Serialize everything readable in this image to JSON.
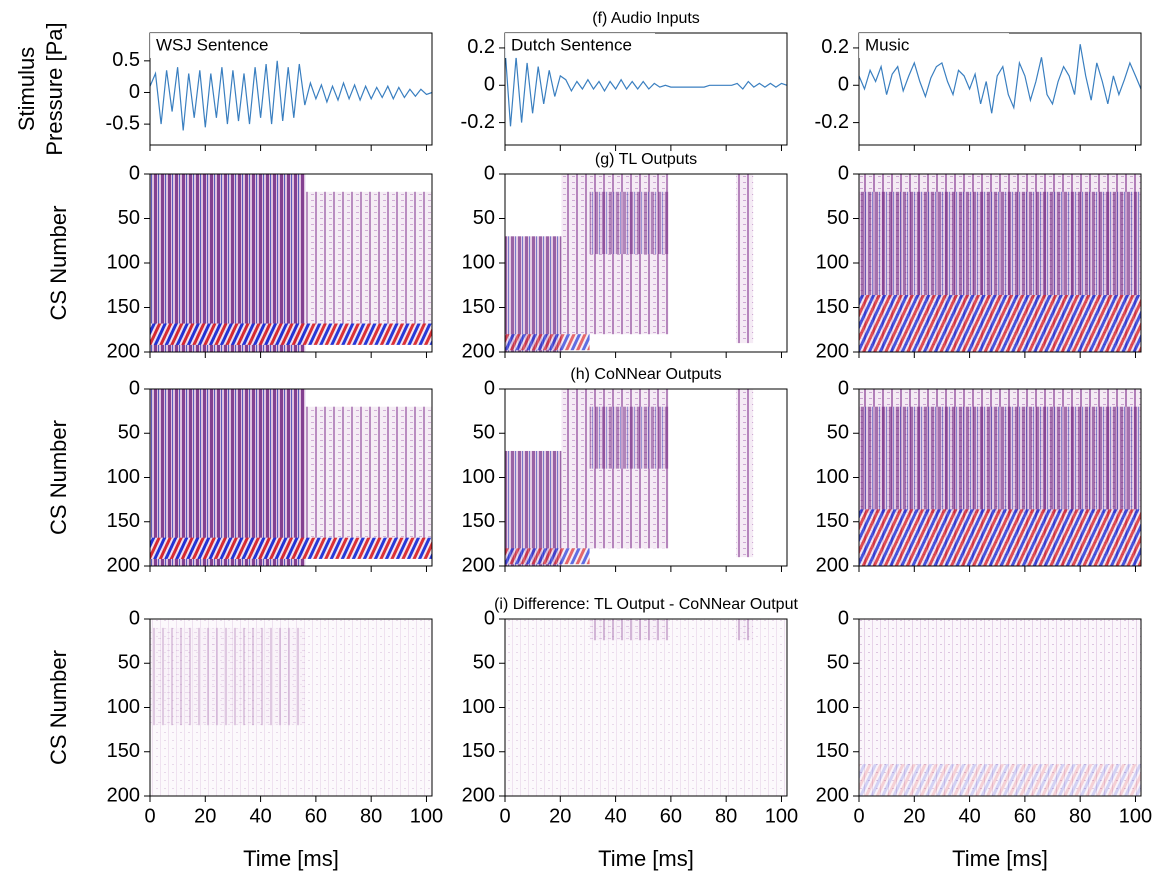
{
  "chart_data": [
    {
      "type": "line",
      "annotation": "WSJ Sentence",
      "ylabel": [
        "Stimulus",
        "Pressure [Pa]"
      ],
      "color": "#3a7fc0",
      "x": [
        0,
        2,
        4,
        6,
        8,
        10,
        12,
        14,
        16,
        18,
        20,
        22,
        24,
        26,
        28,
        30,
        32,
        34,
        36,
        38,
        40,
        42,
        44,
        46,
        48,
        50,
        52,
        54,
        56,
        58,
        60,
        62,
        64,
        66,
        68,
        70,
        72,
        74,
        76,
        78,
        80,
        82,
        84,
        86,
        88,
        90,
        92,
        94,
        96,
        98,
        100,
        102
      ],
      "values": [
        0.1,
        0.3,
        -0.5,
        0.35,
        -0.3,
        0.4,
        -0.6,
        0.3,
        -0.4,
        0.35,
        -0.55,
        0.3,
        -0.4,
        0.4,
        -0.5,
        0.35,
        -0.45,
        0.3,
        -0.5,
        0.4,
        -0.4,
        0.45,
        -0.5,
        0.5,
        -0.45,
        0.4,
        -0.4,
        0.45,
        -0.2,
        0.15,
        -0.1,
        0.12,
        -0.15,
        0.1,
        -0.12,
        0.15,
        -0.1,
        0.12,
        -0.12,
        0.1,
        -0.1,
        0.08,
        -0.08,
        0.1,
        -0.1,
        0.08,
        -0.08,
        0.05,
        -0.06,
        0.05,
        -0.03,
        0
      ],
      "xlim": [
        0,
        102
      ],
      "xticks": [
        0,
        20,
        40,
        60,
        80,
        100
      ],
      "ylim": [
        -0.83,
        0.94
      ],
      "yticks": [
        0.5,
        0,
        -0.5
      ]
    },
    {
      "type": "line",
      "title": "(f) Audio Inputs",
      "annotation": "Dutch Sentence",
      "color": "#3a7fc0",
      "x": [
        0,
        2,
        4,
        6,
        8,
        10,
        12,
        14,
        16,
        18,
        20,
        22,
        24,
        26,
        28,
        30,
        32,
        34,
        36,
        38,
        40,
        42,
        44,
        46,
        48,
        50,
        52,
        54,
        56,
        58,
        60,
        62,
        64,
        66,
        68,
        70,
        72,
        74,
        76,
        78,
        80,
        82,
        84,
        86,
        88,
        90,
        92,
        94,
        96,
        98,
        100,
        102
      ],
      "values": [
        0.2,
        -0.22,
        0.15,
        -0.2,
        0.12,
        -0.15,
        0.1,
        -0.1,
        0.08,
        -0.06,
        0.05,
        0.03,
        -0.03,
        0.02,
        -0.02,
        0.03,
        -0.02,
        0.02,
        -0.03,
        0.02,
        -0.02,
        0.03,
        -0.02,
        0.02,
        -0.02,
        0.02,
        -0.02,
        0.01,
        -0.01,
        0,
        -0.01,
        -0.01,
        -0.01,
        -0.01,
        -0.01,
        -0.01,
        -0.01,
        0,
        0,
        0,
        0,
        0,
        0.01,
        -0.02,
        0.02,
        -0.01,
        0.01,
        -0.01,
        0.01,
        -0.01,
        0.01,
        0
      ],
      "xlim": [
        0,
        102
      ],
      "xticks": [
        0,
        20,
        40,
        60,
        80,
        100
      ],
      "ylim": [
        -0.32,
        0.28
      ],
      "yticks": [
        0.2,
        0,
        -0.2
      ]
    },
    {
      "type": "line",
      "annotation": "Music",
      "color": "#3a7fc0",
      "x": [
        0,
        2,
        4,
        6,
        8,
        10,
        12,
        14,
        16,
        18,
        20,
        22,
        24,
        26,
        28,
        30,
        32,
        34,
        36,
        38,
        40,
        42,
        44,
        46,
        48,
        50,
        52,
        54,
        56,
        58,
        60,
        62,
        64,
        66,
        68,
        70,
        72,
        74,
        76,
        78,
        80,
        82,
        84,
        86,
        88,
        90,
        92,
        94,
        96,
        98,
        100,
        102
      ],
      "values": [
        0.05,
        -0.02,
        0.08,
        0.02,
        0.1,
        -0.05,
        0.06,
        0.1,
        -0.03,
        0.05,
        0.12,
        0.02,
        -0.06,
        0.04,
        0.1,
        0.12,
        0.02,
        -0.05,
        0.08,
        0.05,
        -0.02,
        0.06,
        -0.1,
        0.02,
        -0.15,
        0.05,
        0.1,
        -0.05,
        -0.12,
        0.12,
        0.05,
        -0.08,
        0.02,
        0.15,
        -0.05,
        -0.1,
        0.02,
        0.1,
        0.05,
        -0.05,
        0.22,
        0.05,
        -0.08,
        0.12,
        0.02,
        -0.1,
        0.05,
        -0.05,
        0.03,
        0.12,
        0.05,
        -0.02
      ],
      "xlim": [
        0,
        102
      ],
      "xticks": [
        0,
        20,
        40,
        60,
        80,
        100
      ],
      "ylim": [
        -0.32,
        0.28
      ],
      "yticks": [
        0.2,
        0,
        -0.2
      ]
    },
    {
      "type": "heatmap",
      "ylabel": "CS Number",
      "xlim": [
        0,
        102
      ],
      "xticks": [
        0,
        20,
        40,
        60,
        80,
        100
      ],
      "ylim": [
        200,
        0
      ],
      "yticks": [
        0,
        50,
        100,
        150,
        200
      ]
    },
    {
      "type": "heatmap",
      "title": "(g) TL Outputs",
      "xlim": [
        0,
        102
      ],
      "xticks": [
        0,
        20,
        40,
        60,
        80,
        100
      ],
      "ylim": [
        200,
        0
      ],
      "yticks": [
        0,
        50,
        100,
        150,
        200
      ]
    },
    {
      "type": "heatmap",
      "xlim": [
        0,
        102
      ],
      "xticks": [
        0,
        20,
        40,
        60,
        80,
        100
      ],
      "ylim": [
        200,
        0
      ],
      "yticks": [
        0,
        50,
        100,
        150,
        200
      ]
    },
    {
      "type": "heatmap",
      "ylabel": "CS Number",
      "xlim": [
        0,
        102
      ],
      "xticks": [
        0,
        20,
        40,
        60,
        80,
        100
      ],
      "ylim": [
        200,
        0
      ],
      "yticks": [
        0,
        50,
        100,
        150,
        200
      ]
    },
    {
      "type": "heatmap",
      "title": "(h) CoNNear Outputs",
      "xlim": [
        0,
        102
      ],
      "xticks": [
        0,
        20,
        40,
        60,
        80,
        100
      ],
      "ylim": [
        200,
        0
      ],
      "yticks": [
        0,
        50,
        100,
        150,
        200
      ]
    },
    {
      "type": "heatmap",
      "xlim": [
        0,
        102
      ],
      "xticks": [
        0,
        20,
        40,
        60,
        80,
        100
      ],
      "ylim": [
        200,
        0
      ],
      "yticks": [
        0,
        50,
        100,
        150,
        200
      ]
    },
    {
      "type": "heatmap",
      "ylabel": "CS Number",
      "xlabel": "Time [ms]",
      "xlim": [
        0,
        102
      ],
      "xticks": [
        0,
        20,
        40,
        60,
        80,
        100
      ],
      "ylim": [
        200,
        0
      ],
      "yticks": [
        0,
        50,
        100,
        150,
        200
      ]
    },
    {
      "type": "heatmap",
      "title": "(i) Difference: TL Output - CoNNear Output",
      "xlabel": "Time [ms]",
      "xlim": [
        0,
        102
      ],
      "xticks": [
        0,
        20,
        40,
        60,
        80,
        100
      ],
      "ylim": [
        200,
        0
      ],
      "yticks": [
        0,
        50,
        100,
        150,
        200
      ]
    },
    {
      "type": "heatmap",
      "xlabel": "Time [ms]",
      "xlim": [
        0,
        102
      ],
      "xticks": [
        0,
        20,
        40,
        60,
        80,
        100
      ],
      "ylim": [
        200,
        0
      ],
      "yticks": [
        0,
        50,
        100,
        150,
        200
      ]
    }
  ]
}
